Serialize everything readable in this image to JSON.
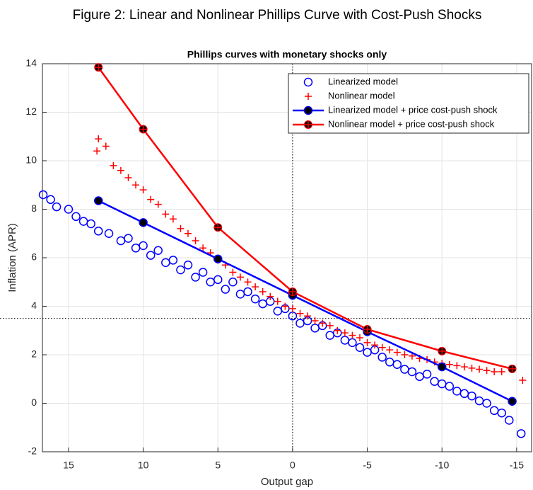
{
  "chart_data": {
    "type": "scatter",
    "title": "Figure 2: Linear and Nonlinear Phillips Curve with Cost-Push Shocks",
    "subtitle": "Phillips curves with monetary shocks only",
    "x_label": "Output gap",
    "y_label": "Inflation (APR)",
    "xlim": [
      16.75,
      -16
    ],
    "ylim": [
      -2,
      14
    ],
    "xticks": [
      15,
      10,
      5,
      0,
      -5,
      -10,
      -15
    ],
    "yticks": [
      -2,
      0,
      2,
      4,
      6,
      8,
      10,
      12,
      14
    ],
    "grid": true,
    "legend": "upper right",
    "reference_lines": {
      "x": 0,
      "y": 3.5
    },
    "series": [
      {
        "name": "Linearized model",
        "color": "#0000ff",
        "marker": "circle",
        "line": false,
        "x": [
          16.7,
          16.2,
          15.8,
          15,
          14.5,
          14,
          13.5,
          13,
          12.3,
          11.5,
          11,
          10.5,
          10,
          9.5,
          9,
          8.5,
          8,
          7.5,
          7,
          6.5,
          6,
          5.5,
          5,
          4.5,
          4,
          3.5,
          3,
          2.5,
          2,
          1.5,
          1,
          0.5,
          0,
          -0.5,
          -1,
          -1.5,
          -2,
          -2.5,
          -3,
          -3.5,
          -4,
          -4.5,
          -5,
          -5.5,
          -6,
          -6.5,
          -7,
          -7.5,
          -8,
          -8.5,
          -9,
          -9.5,
          -10,
          -10.5,
          -11,
          -11.5,
          -12,
          -12.5,
          -13,
          -13.5,
          -14,
          -14.5,
          -15.3
        ],
        "y": [
          8.6,
          8.4,
          8.1,
          8.0,
          7.7,
          7.5,
          7.4,
          7.1,
          7.0,
          6.7,
          6.8,
          6.4,
          6.5,
          6.1,
          6.3,
          5.8,
          5.9,
          5.5,
          5.7,
          5.2,
          5.4,
          5.0,
          5.1,
          4.7,
          5.0,
          4.5,
          4.6,
          4.3,
          4.1,
          4.2,
          3.8,
          3.9,
          3.6,
          3.3,
          3.4,
          3.1,
          3.2,
          2.8,
          2.9,
          2.6,
          2.5,
          2.3,
          2.1,
          2.2,
          1.9,
          1.7,
          1.6,
          1.4,
          1.3,
          1.1,
          1.2,
          0.9,
          0.8,
          0.7,
          0.5,
          0.4,
          0.3,
          0.1,
          0.0,
          -0.3,
          -0.4,
          -0.7,
          -1.25
        ]
      },
      {
        "name": "Nonlinear model",
        "color": "#ff0000",
        "marker": "plus",
        "line": false,
        "x": [
          13,
          13.1,
          12.5,
          12,
          11.5,
          11,
          10.5,
          10,
          9.5,
          9,
          8.5,
          8,
          7.5,
          7,
          6.5,
          6,
          5.5,
          5,
          4.5,
          4,
          3.5,
          3,
          2.5,
          2,
          1.5,
          1,
          0.5,
          0,
          -0.5,
          -1,
          -1.5,
          -2,
          -2.5,
          -3,
          -3.5,
          -4,
          -4.5,
          -5,
          -5.5,
          -6,
          -6.5,
          -7,
          -7.5,
          -8,
          -8.5,
          -9,
          -9.5,
          -10,
          -10.5,
          -11,
          -11.5,
          -12,
          -12.5,
          -13,
          -13.5,
          -14,
          -15.4
        ],
        "y": [
          10.9,
          10.4,
          10.6,
          9.8,
          9.6,
          9.3,
          9.0,
          8.8,
          8.4,
          8.2,
          7.8,
          7.6,
          7.2,
          7.0,
          6.7,
          6.4,
          6.2,
          5.9,
          5.7,
          5.4,
          5.2,
          5.0,
          4.8,
          4.6,
          4.4,
          4.2,
          4.0,
          3.9,
          3.7,
          3.6,
          3.4,
          3.3,
          3.2,
          3.0,
          2.9,
          2.8,
          2.7,
          2.5,
          2.4,
          2.3,
          2.2,
          2.1,
          2.0,
          1.95,
          1.85,
          1.8,
          1.7,
          1.65,
          1.6,
          1.55,
          1.5,
          1.45,
          1.4,
          1.35,
          1.3,
          1.3,
          0.95
        ]
      },
      {
        "name": "Linearized model + price cost-push shock",
        "color": "#0000ff",
        "marker": "dot",
        "line": true,
        "x": [
          13,
          10,
          5,
          0,
          -5,
          -10,
          -14.7
        ],
        "y": [
          8.35,
          7.45,
          5.95,
          4.45,
          2.95,
          1.5,
          0.08
        ]
      },
      {
        "name": "Nonlinear model + price cost-push shock",
        "color": "#ff0000",
        "marker": "dotplus",
        "line": true,
        "x": [
          13,
          10,
          5,
          0,
          -5,
          -10,
          -14.7
        ],
        "y": [
          13.85,
          11.3,
          7.25,
          4.6,
          3.05,
          2.15,
          1.42
        ]
      }
    ]
  }
}
